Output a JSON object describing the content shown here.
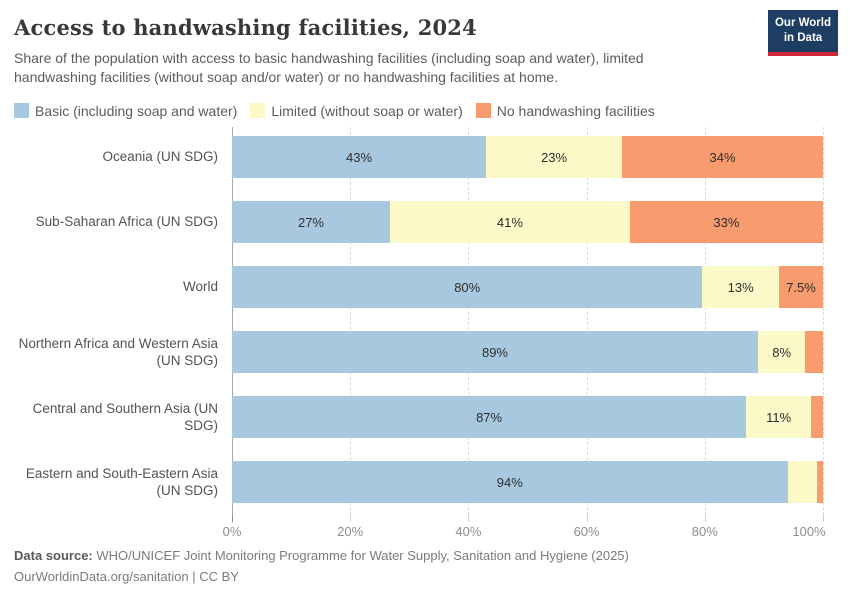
{
  "header": {
    "title": "Access to handwashing facilities, 2024",
    "subtitle": "Share of the population with access to basic handwashing facilities (including soap and water), limited handwashing facilities (without soap and/or water) or no handwashing facilities at home.",
    "logo_line1": "Our World",
    "logo_line2": "in Data",
    "logo_bg_color": "#1d3d63",
    "logo_accent_color": "#d0293e"
  },
  "legend": [
    {
      "key": "basic",
      "label": "Basic (including soap and water)",
      "color": "#a8c8e0"
    },
    {
      "key": "limited",
      "label": "Limited (without soap or water)",
      "color": "#fbf9c8"
    },
    {
      "key": "none",
      "label": "No handwashing facilities",
      "color": "#f89b6e"
    }
  ],
  "chart_data": {
    "type": "bar",
    "orientation": "horizontal",
    "stacked": true,
    "title": "Access to handwashing facilities, 2024",
    "categories": [
      "Oceania (UN SDG)",
      "Sub-Saharan Africa (UN SDG)",
      "World",
      "Northern Africa and Western Asia (UN SDG)",
      "Central and Southern Asia (UN SDG)",
      "Eastern and South-Eastern Asia (UN SDG)"
    ],
    "series": [
      {
        "key": "basic",
        "name": "Basic (including soap and water)",
        "color": "#a8c8e0",
        "values": [
          43,
          27,
          80,
          89,
          87,
          94
        ],
        "labels": [
          "43%",
          "27%",
          "80%",
          "89%",
          "87%",
          "94%"
        ]
      },
      {
        "key": "limited",
        "name": "Limited (without soap or water)",
        "color": "#fbf9c8",
        "values": [
          23,
          41,
          13,
          8,
          11,
          5
        ],
        "labels": [
          "23%",
          "41%",
          "13%",
          "8%",
          "11%",
          ""
        ]
      },
      {
        "key": "none",
        "name": "No handwashing facilities",
        "color": "#f89b6e",
        "values": [
          34,
          33,
          7.5,
          3,
          2,
          1
        ],
        "labels": [
          "34%",
          "33%",
          "7.5%",
          "",
          "",
          ""
        ]
      }
    ],
    "xlim": [
      0,
      100
    ],
    "x_ticks": [
      "0%",
      "20%",
      "40%",
      "60%",
      "80%",
      "100%"
    ],
    "grid": true,
    "legend_position": "top"
  },
  "footer": {
    "source_label": "Data source:",
    "source_text": "WHO/UNICEF Joint Monitoring Programme for Water Supply, Sanitation and Hygiene (2025)",
    "license": "OurWorldinData.org/sanitation | CC BY"
  }
}
